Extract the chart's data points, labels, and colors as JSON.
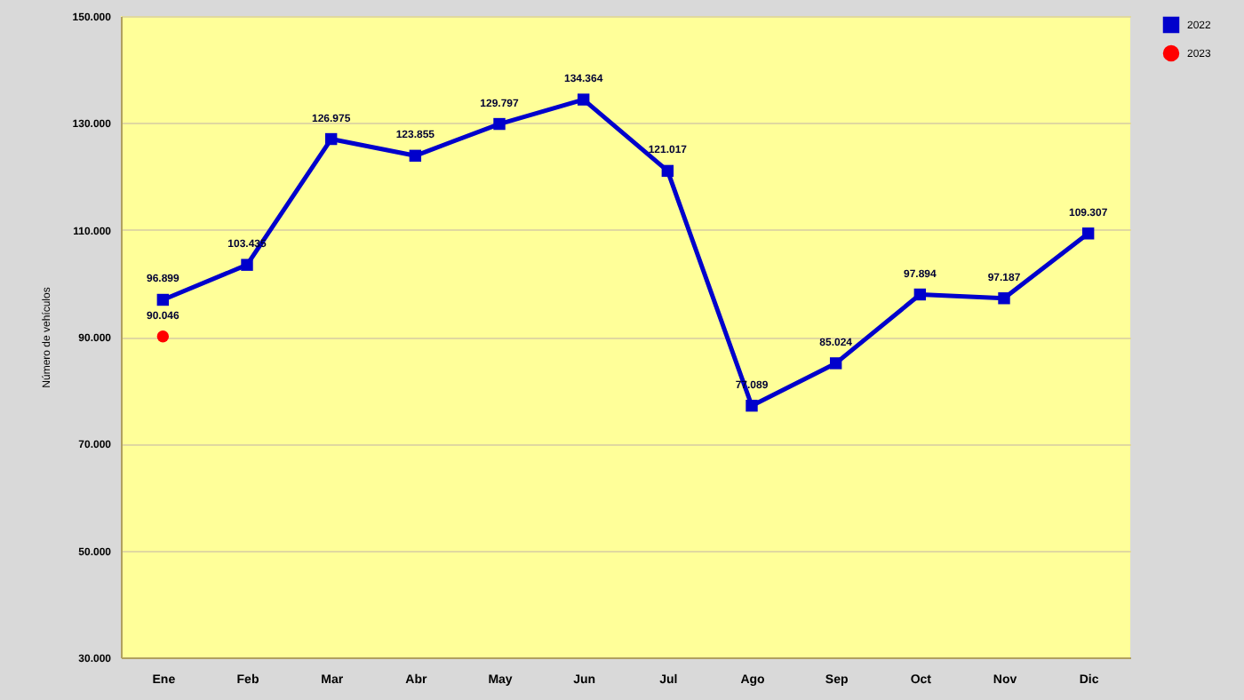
{
  "chart_data": {
    "type": "line",
    "ylabel": "Número de vehículos",
    "categories": [
      "Ene",
      "Feb",
      "Mar",
      "Abr",
      "May",
      "Jun",
      "Jul",
      "Ago",
      "Sep",
      "Oct",
      "Nov",
      "Dic"
    ],
    "series": [
      {
        "name": "2022",
        "color": "#0000cc",
        "marker": "square",
        "values": [
          96899,
          103435,
          126975,
          123855,
          129797,
          134364,
          121017,
          77089,
          85024,
          97894,
          97187,
          109307
        ],
        "value_labels": [
          "96.899",
          "103.435",
          "126.975",
          "123.855",
          "129.797",
          "134.364",
          "121.017",
          "77.089",
          "85.024",
          "97.894",
          "97.187",
          "109.307"
        ]
      },
      {
        "name": "2023",
        "color": "#ff0000",
        "marker": "circle",
        "values": [
          90046,
          null,
          null,
          null,
          null,
          null,
          null,
          null,
          null,
          null,
          null,
          null
        ],
        "value_labels": [
          "90.046",
          null,
          null,
          null,
          null,
          null,
          null,
          null,
          null,
          null,
          null,
          null
        ]
      }
    ],
    "ylim": [
      30000,
      150000
    ],
    "yticks": [
      {
        "value": 30000,
        "label": "30.000"
      },
      {
        "value": 50000,
        "label": "50.000"
      },
      {
        "value": 70000,
        "label": "70.000"
      },
      {
        "value": 90000,
        "label": "90.000"
      },
      {
        "value": 110000,
        "label": "110.000"
      },
      {
        "value": 130000,
        "label": "130.000"
      },
      {
        "value": 150000,
        "label": "150.000"
      }
    ],
    "grid": "y",
    "legend": "right"
  }
}
